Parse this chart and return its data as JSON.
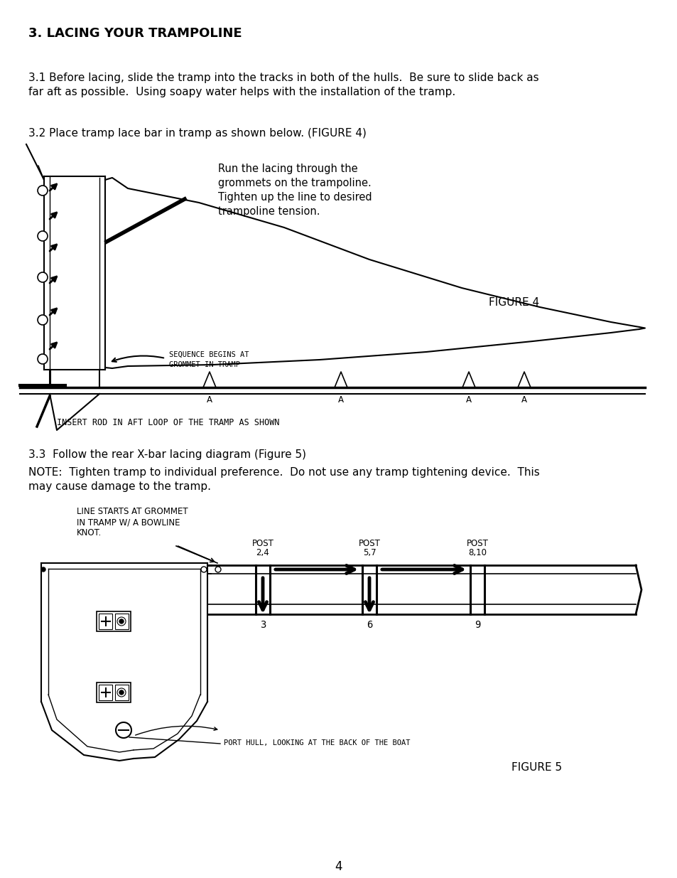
{
  "bg_color": "#ffffff",
  "title": "3. LACING YOUR TRAMPOLINE",
  "para1_line1": "3.1 Before lacing, slide the tramp into the tracks in both of the hulls.  Be sure to slide back as",
  "para1_line2": "far aft as possible.  Using soapy water helps with the installation of the tramp.",
  "para2": "3.2 Place tramp lace bar in tramp as shown below. (FIGURE 4)",
  "fig4_label": "FIGURE 4",
  "fig4_note_line1": "Run the lacing through the",
  "fig4_note_line2": "grommets on the trampoline.",
  "fig4_note_line3": "Tighten up the line to desired",
  "fig4_note_line4": "trampoline tension.",
  "fig4_seq_line1": "SEQUENCE BEGINS AT",
  "fig4_seq_line2": "GROMMET IN TRAMP",
  "fig4_bottom": "INSERT ROD IN AFT LOOP OF THE TRAMP AS SHOWN",
  "para3": "3.3  Follow the rear X-bar lacing diagram (Figure 5)",
  "para4_line1": "NOTE:  Tighten tramp to individual preference.  Do not use any tramp tightening device.  This",
  "para4_line2": "may cause damage to the tramp.",
  "fig5_label": "FIGURE 5",
  "fig5_note_line1": "LINE STARTS AT GROMMET",
  "fig5_note_line2": "IN TRAMP W/ A BOWLINE",
  "fig5_note_line3": "KNOT.",
  "fig5_post1_line1": "POST",
  "fig5_post1_line2": "2,4",
  "fig5_post2_line1": "POST",
  "fig5_post2_line2": "5,7",
  "fig5_post3_line1": "POST",
  "fig5_post3_line2": "8,10",
  "fig5_n1": "3",
  "fig5_n2": "6",
  "fig5_n3": "9",
  "fig5_hull_label": "PORT HULL, LOOKING AT THE BACK OF THE BOAT",
  "page_num": "4"
}
